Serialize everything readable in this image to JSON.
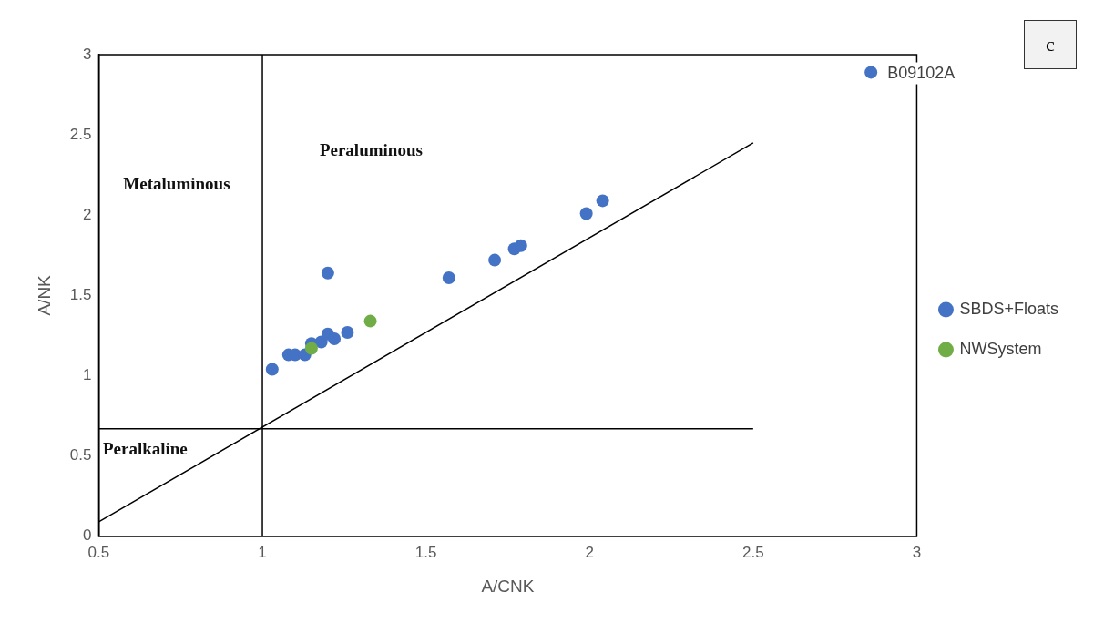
{
  "chart_data": {
    "type": "scatter",
    "xlabel": "A/CNK",
    "ylabel": "A/NK",
    "xlim": [
      0.5,
      3
    ],
    "ylim": [
      0,
      3
    ],
    "xticks": [
      0.5,
      1,
      1.5,
      2,
      2.5,
      3
    ],
    "yticks": [
      0,
      0.5,
      1,
      1.5,
      2,
      2.5,
      3
    ],
    "grid": false,
    "legend": "right",
    "marker": "circle",
    "series": [
      {
        "name": "SBDS+Floats",
        "color": "#4472c4",
        "x": [
          1.03,
          1.08,
          1.1,
          1.13,
          1.15,
          1.18,
          1.2,
          1.22,
          1.26,
          1.2,
          1.57,
          1.71,
          1.77,
          1.79,
          1.99,
          2.04,
          2.86
        ],
        "values": [
          1.04,
          1.13,
          1.13,
          1.13,
          1.2,
          1.21,
          1.26,
          1.23,
          1.27,
          1.64,
          1.61,
          1.72,
          1.79,
          1.81,
          2.01,
          2.09,
          2.89
        ]
      },
      {
        "name": "NWSystem",
        "color": "#70ad47",
        "x": [
          1.15,
          1.33
        ],
        "values": [
          1.17,
          1.34
        ]
      },
      {
        "type": "line",
        "color": "#000000",
        "x": [
          0.5,
          2.5
        ],
        "values": [
          0.09,
          2.45
        ],
        "marker": "none"
      },
      {
        "type": "line",
        "color": "#000000",
        "x": [
          0.5,
          2.5
        ],
        "values": [
          0.67,
          0.67
        ],
        "marker": "none"
      }
    ],
    "ref_lines": [
      {
        "axis": "x",
        "value": 1,
        "color": "#000000"
      }
    ],
    "annotations": [
      "Metaluminous",
      "Peraluminous",
      "Peralkaline",
      {
        "text": "B09102A",
        "x": 2.86,
        "y": 2.89
      },
      "c"
    ]
  }
}
